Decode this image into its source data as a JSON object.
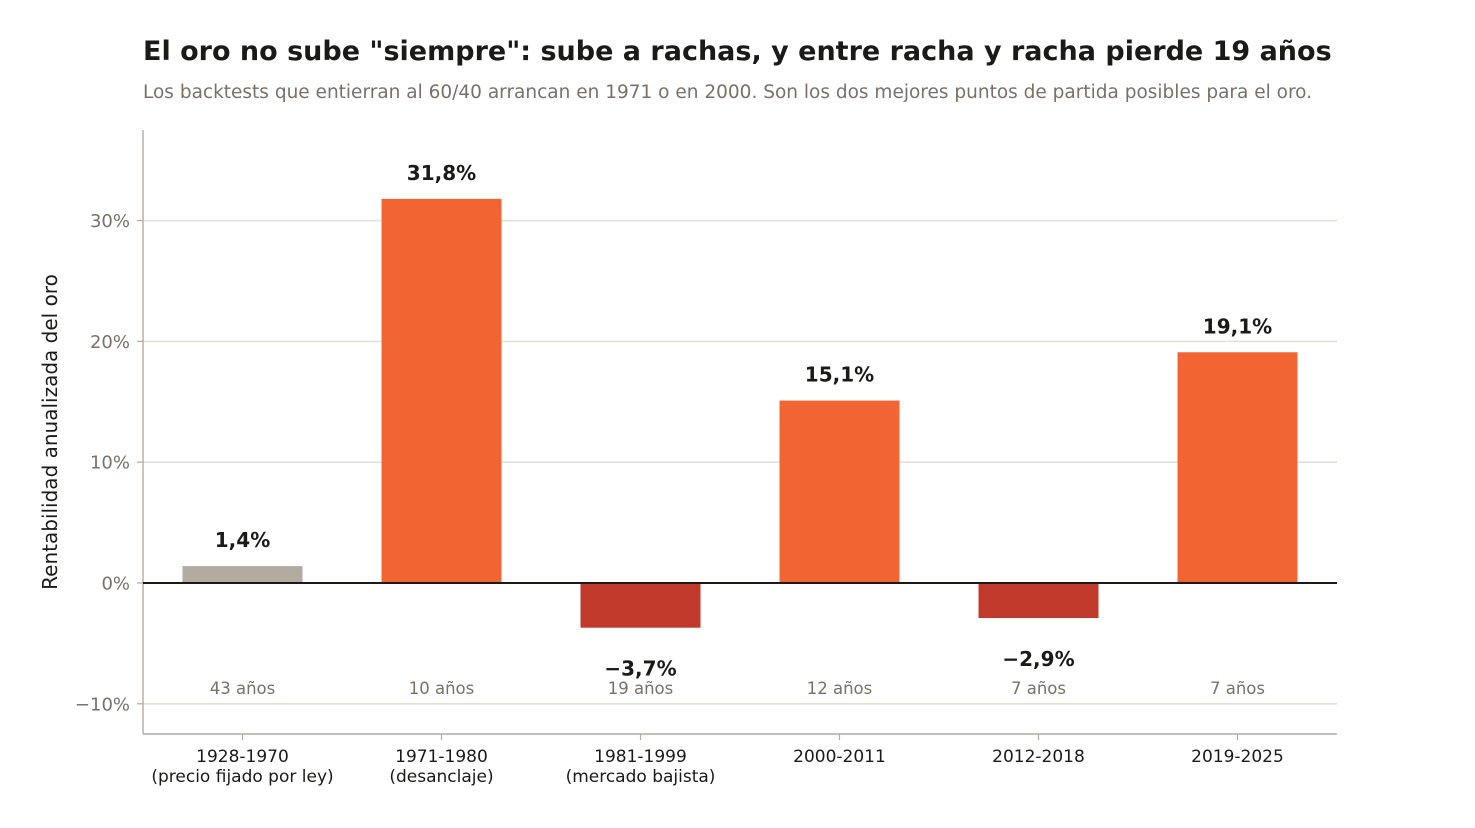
{
  "title": "El oro no sube \"siempre\": sube a rachas, y entre racha y racha pierde 19 años",
  "subtitle": "Los backtests que entierran al 60/40 arrancan en 1971 o en 2000. Son los dos mejores puntos de partida posibles para el oro.",
  "chart_data": {
    "type": "bar",
    "title": "El oro no sube \"siempre\": sube a rachas, y entre racha y racha pierde 19 años",
    "subtitle": "Los backtests que entierran al 60/40 arrancan en 1971 o en 2000. Son los dos mejores puntos de partida posibles para el oro.",
    "ylabel": "Rentabilidad anualizada del oro",
    "xlabel": "",
    "ylim": [
      -12.5,
      37.5
    ],
    "yticks": [
      -10,
      0,
      10,
      20,
      30
    ],
    "ytick_labels": [
      "−10%",
      "0%",
      "10%",
      "20%",
      "30%"
    ],
    "grid": true,
    "categories": [
      [
        "1928-1970",
        "(precio fijado por ley)"
      ],
      [
        "1971-1980",
        "(desanclaje)"
      ],
      [
        "1981-1999",
        "(mercado bajista)"
      ],
      [
        "2000-2011"
      ],
      [
        "2012-2018"
      ],
      [
        "2019-2025"
      ]
    ],
    "values": [
      1.4,
      31.8,
      -3.7,
      15.1,
      -2.9,
      19.1
    ],
    "value_labels": [
      "1,4%",
      "31,8%",
      "−3,7%",
      "15,1%",
      "−2,9%",
      "19,1%"
    ],
    "durations": [
      "43 años",
      "10 años",
      "19 años",
      "12 años",
      "7 años",
      "7 años"
    ],
    "colors": [
      "#b3aaa0",
      "#f26532",
      "#c1392b",
      "#f26532",
      "#c1392b",
      "#f26532"
    ],
    "colors_meaning": {
      "neutral": "#b3aaa0",
      "up": "#f26532",
      "down": "#c1392b"
    }
  }
}
